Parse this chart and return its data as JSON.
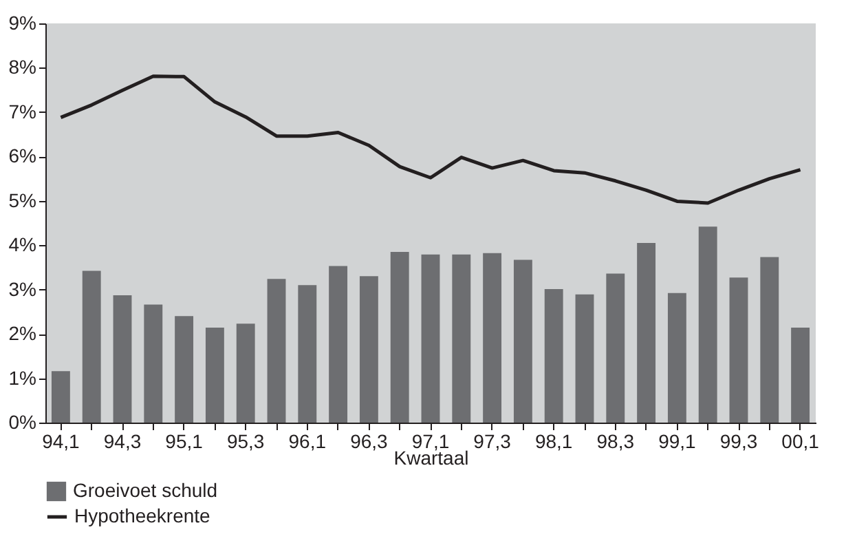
{
  "chart_data": {
    "type": "bar",
    "xlabel": "Kwartaal",
    "categories": [
      "94,1",
      null,
      "94,3",
      null,
      "95,1",
      null,
      "95,3",
      null,
      "96,1",
      null,
      "96,3",
      null,
      "97,1",
      null,
      "97,3",
      null,
      "98,1",
      null,
      "98,3",
      null,
      "99,1",
      null,
      "99,3",
      null,
      "00,1"
    ],
    "series": [
      {
        "name": "Groeivoet schuld",
        "color": "#6d6e71",
        "values": [
          1.16,
          3.42,
          2.87,
          2.66,
          2.4,
          2.14,
          2.23,
          3.24,
          3.1,
          3.53,
          3.3,
          3.85,
          3.79,
          3.79,
          3.82,
          3.67,
          3.01,
          2.89,
          3.36,
          4.05,
          2.92,
          4.42,
          3.27,
          3.73,
          2.14
        ]
      },
      {
        "name": "Hypotheekrente",
        "type": "line",
        "color": "#231f20",
        "values": [
          6.88,
          7.16,
          7.49,
          7.81,
          7.8,
          7.23,
          6.89,
          6.46,
          6.46,
          6.54,
          6.25,
          5.77,
          5.52,
          5.98,
          5.74,
          5.91,
          5.68,
          5.63,
          5.45,
          5.24,
          4.99,
          4.95,
          5.24,
          5.5,
          5.7
        ]
      }
    ],
    "ylim": [
      0,
      9
    ],
    "yticks": [
      {
        "value": 0,
        "label": "0%"
      },
      {
        "value": 1,
        "label": "1%"
      },
      {
        "value": 2,
        "label": "2%"
      },
      {
        "value": 3,
        "label": "3%"
      },
      {
        "value": 4,
        "label": "4%"
      },
      {
        "value": 5,
        "label": "5%"
      },
      {
        "value": 6,
        "label": "6%"
      },
      {
        "value": 7,
        "label": "7%"
      },
      {
        "value": 8,
        "label": "8%"
      },
      {
        "value": 9,
        "label": "9%"
      }
    ],
    "grid": false,
    "legend": "bottom left",
    "marker": "none",
    "line_style": "solid"
  }
}
